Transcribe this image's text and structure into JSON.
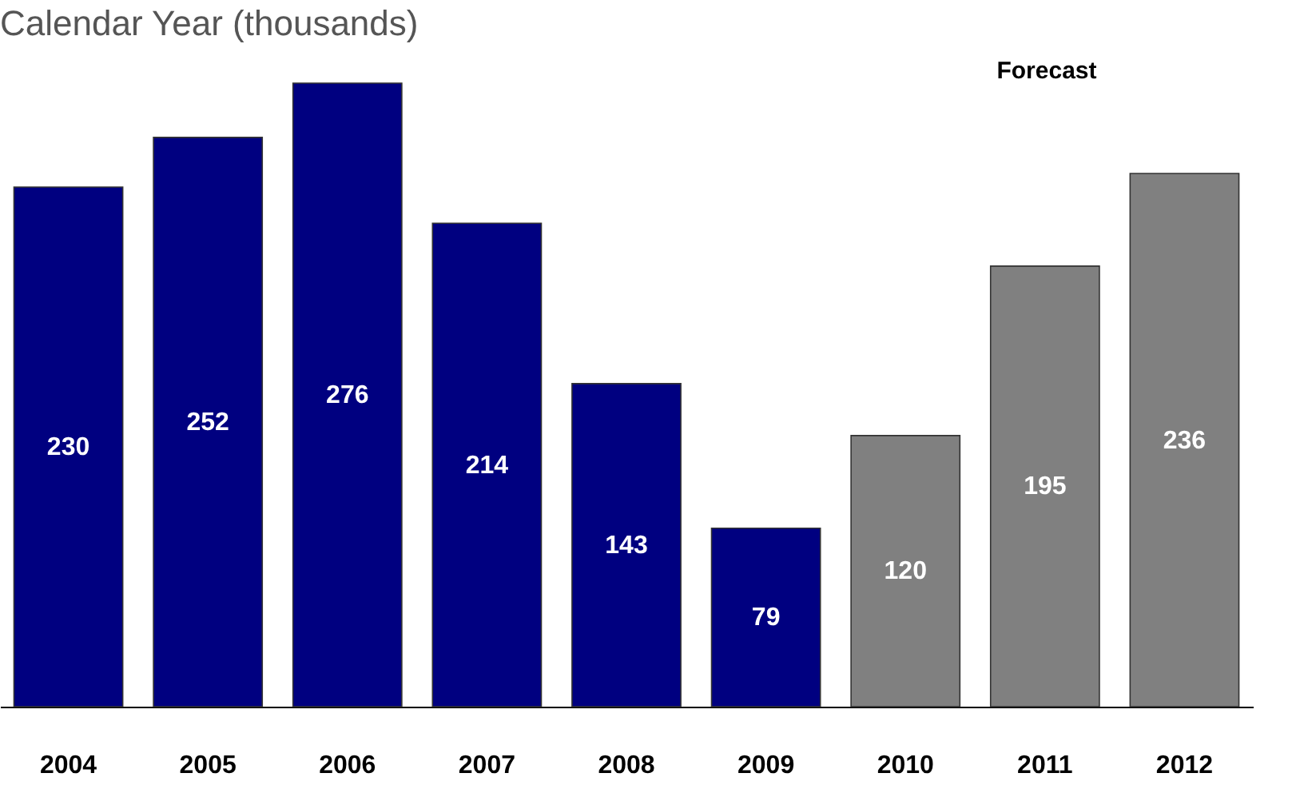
{
  "chart_data": {
    "type": "bar",
    "title": "Calendar Year (thousands)",
    "categories": [
      "2004",
      "2005",
      "2006",
      "2007",
      "2008",
      "2009",
      "2010",
      "2011",
      "2012"
    ],
    "values": [
      230,
      252,
      276,
      214,
      143,
      79,
      120,
      195,
      236
    ],
    "colors": [
      "#000080",
      "#000080",
      "#000080",
      "#000080",
      "#000080",
      "#000080",
      "#808080",
      "#808080",
      "#808080"
    ],
    "data_labels": true,
    "grid": false,
    "annotations": [
      "Forecast"
    ]
  }
}
